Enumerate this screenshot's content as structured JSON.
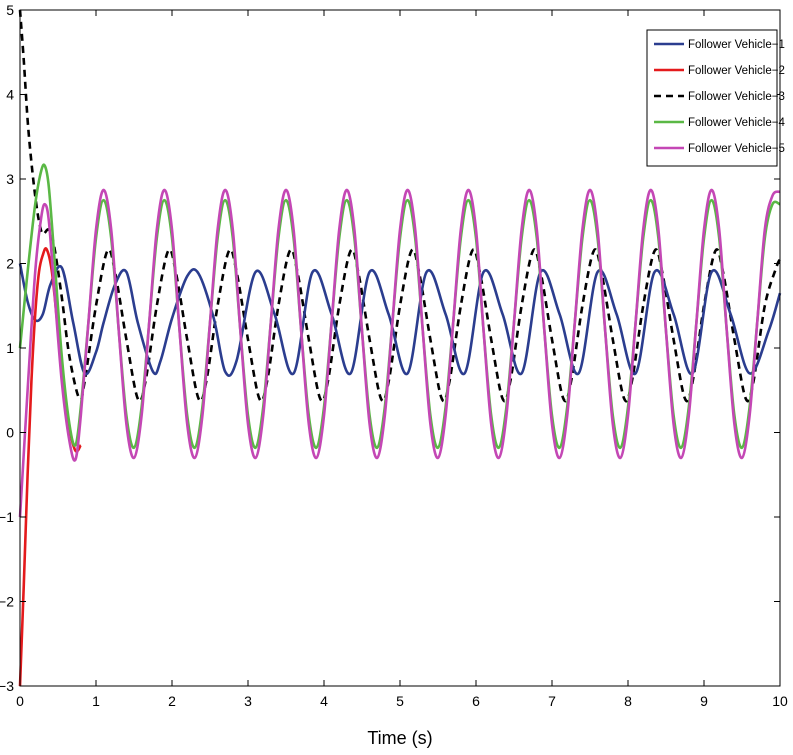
{
  "chart_data": {
    "type": "line",
    "title": "",
    "xlabel": "Time (s)",
    "ylabel": "",
    "xlim": [
      0,
      10
    ],
    "ylim": [
      -3,
      5
    ],
    "xticks": [
      0,
      1,
      2,
      3,
      4,
      5,
      6,
      7,
      8,
      9,
      10
    ],
    "yticks": [
      -3,
      -2,
      -1,
      0,
      1,
      2,
      3,
      4,
      5
    ],
    "grid": false,
    "legend_position": "top-right",
    "series": [
      {
        "name": "Follower Vehicle−1",
        "color": "#2b3d8f",
        "dash": "solid",
        "x": [
          0,
          0.1,
          0.2,
          0.3,
          0.4,
          0.55,
          0.7,
          0.85,
          1.0,
          1.1,
          1.25,
          1.4,
          1.55,
          1.75,
          1.85,
          2.0,
          2.2,
          2.35,
          2.55,
          2.7,
          2.85,
          3.1,
          3.35,
          3.6,
          3.85,
          4.1,
          4.35,
          4.6,
          4.85,
          5.1,
          5.35,
          5.6,
          5.85,
          6.1,
          6.35,
          6.6,
          6.85,
          7.1,
          7.35,
          7.6,
          7.85,
          8.1,
          8.35,
          8.6,
          8.85,
          9.1,
          9.35,
          9.6,
          9.85,
          10.0
        ],
        "y": [
          2.0,
          1.55,
          1.33,
          1.4,
          1.75,
          1.95,
          1.3,
          0.7,
          0.95,
          1.3,
          1.75,
          1.9,
          1.3,
          0.72,
          0.85,
          1.35,
          1.85,
          1.88,
          1.35,
          0.72,
          0.85,
          1.9,
          1.4,
          0.7,
          1.9,
          1.4,
          0.7,
          1.9,
          1.4,
          0.7,
          1.9,
          1.4,
          0.7,
          1.9,
          1.4,
          0.7,
          1.9,
          1.4,
          0.7,
          1.9,
          1.4,
          0.7,
          1.9,
          1.4,
          0.7,
          1.9,
          1.4,
          0.7,
          1.2,
          1.65
        ]
      },
      {
        "name": "Follower Vehicle−2",
        "color": "#e41a1c",
        "dash": "solid",
        "x": [
          0,
          0.05,
          0.1,
          0.15,
          0.2,
          0.25,
          0.3,
          0.35,
          0.42,
          0.5,
          0.6,
          0.72,
          0.8
        ],
        "y": [
          -3.0,
          -1.8,
          -0.5,
          0.6,
          1.4,
          1.9,
          2.1,
          2.17,
          1.9,
          1.2,
          0.3,
          -0.2,
          -0.15
        ]
      },
      {
        "name": "Follower Vehicle−3",
        "color": "#000000",
        "dash": "dashed",
        "x": [
          0,
          0.05,
          0.1,
          0.15,
          0.2,
          0.25,
          0.3,
          0.38,
          0.45,
          0.55,
          0.65,
          0.78,
          0.85,
          1.0,
          1.15,
          1.25,
          1.4,
          1.55,
          1.65,
          1.8,
          1.95,
          2.05,
          2.2,
          2.35,
          2.45,
          2.6,
          2.75,
          2.85,
          3.0,
          3.15,
          3.25,
          3.4,
          3.55,
          3.65,
          3.8,
          3.95,
          4.05,
          4.2,
          4.35,
          4.45,
          4.6,
          4.75,
          4.85,
          5.0,
          5.15,
          5.25,
          5.4,
          5.55,
          5.65,
          5.8,
          5.95,
          6.05,
          6.2,
          6.35,
          6.45,
          6.6,
          6.75,
          6.85,
          7.0,
          7.15,
          7.25,
          7.4,
          7.55,
          7.65,
          7.8,
          7.95,
          8.05,
          8.2,
          8.35,
          8.45,
          8.6,
          8.75,
          8.85,
          9.0,
          9.15,
          9.25,
          9.4,
          9.55,
          9.65,
          9.8,
          9.95,
          10.0
        ],
        "y": [
          5.0,
          4.4,
          3.7,
          3.2,
          2.8,
          2.5,
          2.35,
          2.4,
          2.2,
          1.6,
          0.9,
          0.4,
          0.6,
          1.5,
          2.15,
          1.9,
          1.1,
          0.4,
          0.6,
          1.5,
          2.15,
          1.9,
          1.1,
          0.4,
          0.6,
          1.5,
          2.15,
          1.9,
          1.1,
          0.4,
          0.6,
          1.5,
          2.15,
          1.9,
          1.1,
          0.4,
          0.6,
          1.5,
          2.15,
          1.9,
          1.1,
          0.4,
          0.6,
          1.5,
          2.15,
          1.9,
          1.1,
          0.4,
          0.6,
          1.5,
          2.15,
          1.9,
          1.1,
          0.4,
          0.6,
          1.5,
          2.15,
          1.9,
          1.1,
          0.4,
          0.6,
          1.5,
          2.15,
          1.9,
          1.1,
          0.4,
          0.6,
          1.5,
          2.15,
          1.9,
          1.1,
          0.4,
          0.6,
          1.5,
          2.15,
          1.9,
          1.1,
          0.4,
          0.6,
          1.5,
          1.95,
          2.05
        ]
      },
      {
        "name": "Follower Vehicle−4",
        "color": "#5ab845",
        "dash": "solid",
        "x": [
          0,
          0.1,
          0.2,
          0.28,
          0.33,
          0.38,
          0.45,
          0.55,
          0.65,
          0.73,
          0.8,
          0.9,
          1.0,
          1.1,
          1.2,
          1.3,
          1.4,
          1.5,
          1.6,
          1.7,
          1.8,
          1.9,
          2.0,
          2.1,
          2.2,
          2.3,
          2.4,
          2.5,
          2.6,
          2.7,
          2.8,
          2.9,
          3.0,
          3.1,
          3.2,
          3.3,
          3.4,
          3.5,
          3.6,
          3.7,
          3.8,
          3.9,
          4.0,
          4.1,
          4.2,
          4.3,
          4.4,
          4.5,
          4.6,
          4.7,
          4.8,
          4.9,
          5.0,
          5.1,
          5.2,
          5.3,
          5.4,
          5.5,
          5.6,
          5.7,
          5.8,
          5.9,
          6.0,
          6.1,
          6.2,
          6.3,
          6.4,
          6.5,
          6.6,
          6.7,
          6.8,
          6.9,
          7.0,
          7.1,
          7.2,
          7.3,
          7.4,
          7.5,
          7.6,
          7.7,
          7.8,
          7.9,
          8.0,
          8.1,
          8.2,
          8.3,
          8.4,
          8.5,
          8.6,
          8.7,
          8.8,
          8.9,
          9.0,
          9.1,
          9.2,
          9.3,
          9.4,
          9.5,
          9.6,
          9.7,
          9.8,
          9.9,
          10.0
        ],
        "y": [
          1.0,
          1.9,
          2.7,
          3.1,
          3.15,
          2.9,
          2.1,
          0.9,
          0.1,
          -0.15,
          0.3,
          1.3,
          2.3,
          2.75,
          2.3,
          1.2,
          0.2,
          -0.18,
          0.3,
          1.3,
          2.3,
          2.75,
          2.3,
          1.2,
          0.2,
          -0.18,
          0.3,
          1.3,
          2.3,
          2.75,
          2.3,
          1.2,
          0.2,
          -0.18,
          0.3,
          1.3,
          2.3,
          2.75,
          2.3,
          1.2,
          0.2,
          -0.18,
          0.3,
          1.3,
          2.3,
          2.75,
          2.3,
          1.2,
          0.2,
          -0.18,
          0.3,
          1.3,
          2.3,
          2.75,
          2.3,
          1.2,
          0.2,
          -0.18,
          0.3,
          1.3,
          2.3,
          2.75,
          2.3,
          1.2,
          0.2,
          -0.18,
          0.3,
          1.3,
          2.3,
          2.75,
          2.3,
          1.2,
          0.2,
          -0.18,
          0.3,
          1.3,
          2.3,
          2.75,
          2.3,
          1.2,
          0.2,
          -0.18,
          0.3,
          1.3,
          2.3,
          2.75,
          2.3,
          1.2,
          0.2,
          -0.18,
          0.3,
          1.3,
          2.3,
          2.75,
          2.3,
          1.2,
          0.2,
          -0.18,
          0.3,
          1.3,
          2.3,
          2.7,
          2.7
        ]
      },
      {
        "name": "Follower Vehicle−5",
        "color": "#c447b5",
        "dash": "solid",
        "x": [
          0,
          0.1,
          0.2,
          0.28,
          0.33,
          0.38,
          0.45,
          0.55,
          0.65,
          0.73,
          0.8,
          0.9,
          1.0,
          1.1,
          1.2,
          1.3,
          1.4,
          1.5,
          1.6,
          1.7,
          1.8,
          1.9,
          2.0,
          2.1,
          2.2,
          2.3,
          2.4,
          2.5,
          2.6,
          2.7,
          2.8,
          2.9,
          3.0,
          3.1,
          3.2,
          3.3,
          3.4,
          3.5,
          3.6,
          3.7,
          3.8,
          3.9,
          4.0,
          4.1,
          4.2,
          4.3,
          4.4,
          4.5,
          4.6,
          4.7,
          4.8,
          4.9,
          5.0,
          5.1,
          5.2,
          5.3,
          5.4,
          5.5,
          5.6,
          5.7,
          5.8,
          5.9,
          6.0,
          6.1,
          6.2,
          6.3,
          6.4,
          6.5,
          6.6,
          6.7,
          6.8,
          6.9,
          7.0,
          7.1,
          7.2,
          7.3,
          7.4,
          7.5,
          7.6,
          7.7,
          7.8,
          7.9,
          8.0,
          8.1,
          8.2,
          8.3,
          8.4,
          8.5,
          8.6,
          8.7,
          8.8,
          8.9,
          9.0,
          9.1,
          9.2,
          9.3,
          9.4,
          9.5,
          9.6,
          9.7,
          9.8,
          9.9,
          10.0
        ],
        "y": [
          -1.0,
          0.5,
          1.9,
          2.55,
          2.7,
          2.5,
          1.7,
          0.6,
          -0.1,
          -0.32,
          0.2,
          1.3,
          2.4,
          2.87,
          2.4,
          1.2,
          0.1,
          -0.3,
          0.2,
          1.3,
          2.4,
          2.87,
          2.4,
          1.2,
          0.1,
          -0.3,
          0.2,
          1.3,
          2.4,
          2.87,
          2.4,
          1.2,
          0.1,
          -0.3,
          0.2,
          1.3,
          2.4,
          2.87,
          2.4,
          1.2,
          0.1,
          -0.3,
          0.2,
          1.3,
          2.4,
          2.87,
          2.4,
          1.2,
          0.1,
          -0.3,
          0.2,
          1.3,
          2.4,
          2.87,
          2.4,
          1.2,
          0.1,
          -0.3,
          0.2,
          1.3,
          2.4,
          2.87,
          2.4,
          1.2,
          0.1,
          -0.3,
          0.2,
          1.3,
          2.4,
          2.87,
          2.4,
          1.2,
          0.1,
          -0.3,
          0.2,
          1.3,
          2.4,
          2.87,
          2.4,
          1.2,
          0.1,
          -0.3,
          0.2,
          1.3,
          2.4,
          2.87,
          2.4,
          1.2,
          0.1,
          -0.3,
          0.2,
          1.3,
          2.4,
          2.87,
          2.4,
          1.2,
          0.1,
          -0.3,
          0.2,
          1.3,
          2.4,
          2.8,
          2.85
        ]
      }
    ]
  }
}
